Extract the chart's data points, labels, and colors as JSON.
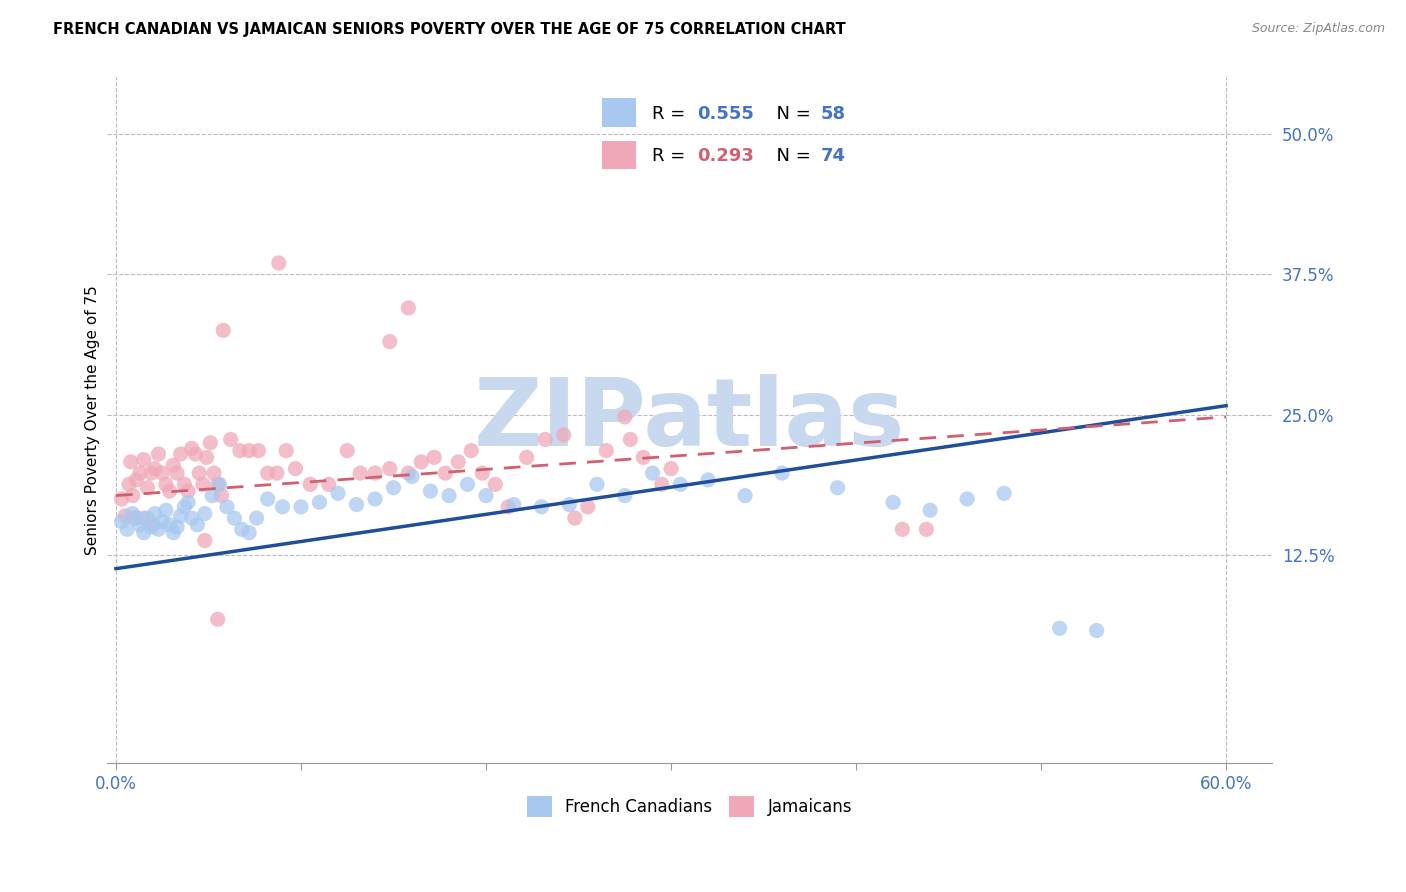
{
  "title": "FRENCH CANADIAN VS JAMAICAN SENIORS POVERTY OVER THE AGE OF 75 CORRELATION CHART",
  "source": "Source: ZipAtlas.com",
  "xlabel_vals": [
    0.0,
    0.6
  ],
  "xlabel_show": [
    0.0,
    0.6
  ],
  "ylabel": "Seniors Poverty Over the Age of 75",
  "ylabel_vals": [
    0.125,
    0.25,
    0.375,
    0.5
  ],
  "ylim": [
    -0.06,
    0.55
  ],
  "xlim": [
    -0.005,
    0.625
  ],
  "fc_color": "#A8C8F0",
  "jam_color": "#F0A8B8",
  "fc_R": 0.555,
  "fc_N": 58,
  "jam_R": 0.293,
  "jam_N": 74,
  "watermark": "ZIPatlas",
  "legend_label_fc": "French Canadians",
  "legend_label_jam": "Jamaicans",
  "fc_points": [
    [
      0.003,
      0.155
    ],
    [
      0.006,
      0.148
    ],
    [
      0.009,
      0.162
    ],
    [
      0.011,
      0.158
    ],
    [
      0.013,
      0.152
    ],
    [
      0.015,
      0.145
    ],
    [
      0.017,
      0.158
    ],
    [
      0.019,
      0.15
    ],
    [
      0.021,
      0.162
    ],
    [
      0.023,
      0.148
    ],
    [
      0.025,
      0.155
    ],
    [
      0.027,
      0.165
    ],
    [
      0.029,
      0.152
    ],
    [
      0.031,
      0.145
    ],
    [
      0.033,
      0.15
    ],
    [
      0.035,
      0.16
    ],
    [
      0.037,
      0.168
    ],
    [
      0.039,
      0.172
    ],
    [
      0.041,
      0.158
    ],
    [
      0.044,
      0.152
    ],
    [
      0.048,
      0.162
    ],
    [
      0.052,
      0.178
    ],
    [
      0.056,
      0.188
    ],
    [
      0.06,
      0.168
    ],
    [
      0.064,
      0.158
    ],
    [
      0.068,
      0.148
    ],
    [
      0.072,
      0.145
    ],
    [
      0.076,
      0.158
    ],
    [
      0.082,
      0.175
    ],
    [
      0.09,
      0.168
    ],
    [
      0.1,
      0.168
    ],
    [
      0.11,
      0.172
    ],
    [
      0.12,
      0.18
    ],
    [
      0.13,
      0.17
    ],
    [
      0.14,
      0.175
    ],
    [
      0.15,
      0.185
    ],
    [
      0.16,
      0.195
    ],
    [
      0.17,
      0.182
    ],
    [
      0.18,
      0.178
    ],
    [
      0.19,
      0.188
    ],
    [
      0.2,
      0.178
    ],
    [
      0.215,
      0.17
    ],
    [
      0.23,
      0.168
    ],
    [
      0.245,
      0.17
    ],
    [
      0.26,
      0.188
    ],
    [
      0.275,
      0.178
    ],
    [
      0.29,
      0.198
    ],
    [
      0.305,
      0.188
    ],
    [
      0.32,
      0.192
    ],
    [
      0.34,
      0.178
    ],
    [
      0.36,
      0.198
    ],
    [
      0.39,
      0.185
    ],
    [
      0.42,
      0.172
    ],
    [
      0.44,
      0.165
    ],
    [
      0.46,
      0.175
    ],
    [
      0.48,
      0.18
    ],
    [
      0.51,
      0.06
    ],
    [
      0.53,
      0.058
    ]
  ],
  "jam_points": [
    [
      0.003,
      0.175
    ],
    [
      0.005,
      0.16
    ],
    [
      0.007,
      0.188
    ],
    [
      0.009,
      0.178
    ],
    [
      0.011,
      0.192
    ],
    [
      0.013,
      0.198
    ],
    [
      0.015,
      0.21
    ],
    [
      0.017,
      0.185
    ],
    [
      0.019,
      0.198
    ],
    [
      0.021,
      0.202
    ],
    [
      0.023,
      0.215
    ],
    [
      0.025,
      0.198
    ],
    [
      0.027,
      0.188
    ],
    [
      0.029,
      0.182
    ],
    [
      0.031,
      0.205
    ],
    [
      0.033,
      0.198
    ],
    [
      0.035,
      0.215
    ],
    [
      0.037,
      0.188
    ],
    [
      0.039,
      0.182
    ],
    [
      0.041,
      0.22
    ],
    [
      0.043,
      0.215
    ],
    [
      0.045,
      0.198
    ],
    [
      0.047,
      0.188
    ],
    [
      0.049,
      0.212
    ],
    [
      0.051,
      0.225
    ],
    [
      0.053,
      0.198
    ],
    [
      0.055,
      0.188
    ],
    [
      0.057,
      0.178
    ],
    [
      0.062,
      0.228
    ],
    [
      0.067,
      0.218
    ],
    [
      0.072,
      0.218
    ],
    [
      0.077,
      0.218
    ],
    [
      0.082,
      0.198
    ],
    [
      0.087,
      0.198
    ],
    [
      0.092,
      0.218
    ],
    [
      0.097,
      0.202
    ],
    [
      0.105,
      0.188
    ],
    [
      0.115,
      0.188
    ],
    [
      0.125,
      0.218
    ],
    [
      0.132,
      0.198
    ],
    [
      0.14,
      0.198
    ],
    [
      0.148,
      0.202
    ],
    [
      0.158,
      0.198
    ],
    [
      0.165,
      0.208
    ],
    [
      0.172,
      0.212
    ],
    [
      0.178,
      0.198
    ],
    [
      0.185,
      0.208
    ],
    [
      0.192,
      0.218
    ],
    [
      0.198,
      0.198
    ],
    [
      0.205,
      0.188
    ],
    [
      0.212,
      0.168
    ],
    [
      0.222,
      0.212
    ],
    [
      0.232,
      0.228
    ],
    [
      0.242,
      0.232
    ],
    [
      0.255,
      0.168
    ],
    [
      0.265,
      0.218
    ],
    [
      0.275,
      0.248
    ],
    [
      0.285,
      0.212
    ],
    [
      0.295,
      0.188
    ],
    [
      0.048,
      0.138
    ],
    [
      0.015,
      0.158
    ],
    [
      0.02,
      0.152
    ],
    [
      0.058,
      0.325
    ],
    [
      0.088,
      0.385
    ],
    [
      0.148,
      0.315
    ],
    [
      0.158,
      0.345
    ],
    [
      0.248,
      0.158
    ],
    [
      0.278,
      0.228
    ],
    [
      0.3,
      0.202
    ],
    [
      0.008,
      0.208
    ],
    [
      0.01,
      0.158
    ],
    [
      0.055,
      0.068
    ],
    [
      0.425,
      0.148
    ],
    [
      0.438,
      0.148
    ]
  ],
  "fc_line_color": "#1F4E9A",
  "jam_line_color": "#D06070",
  "fc_line": [
    [
      0.0,
      0.6
    ],
    [
      0.113,
      0.258
    ]
  ],
  "jam_line": [
    [
      0.0,
      0.6
    ],
    [
      0.178,
      0.248
    ]
  ],
  "grid_color": "#bbbbbb",
  "grid_linestyle": "--",
  "bg_color": "#ffffff",
  "title_fontsize": 10.5,
  "tick_label_color_blue": "#4472C4",
  "watermark_text": "ZIPatlas",
  "watermark_color": "#C8D8EE"
}
